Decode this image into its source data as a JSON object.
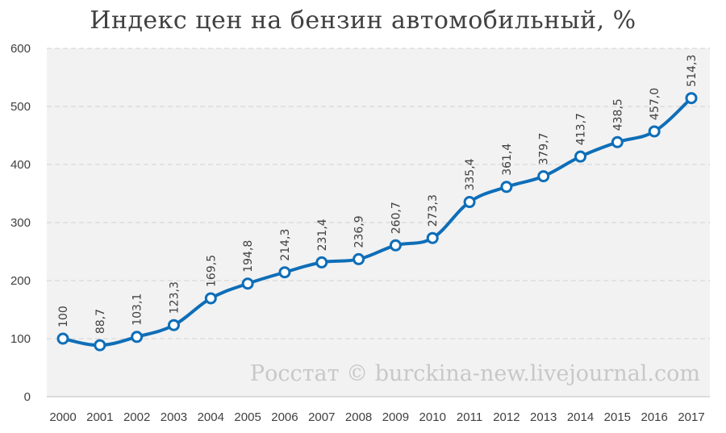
{
  "chart_data": {
    "type": "line",
    "title": "Индекс цен на бензин автомобильный, %",
    "xlabel": "",
    "ylabel": "",
    "ylim": [
      0,
      600
    ],
    "yticks": [
      0,
      100,
      200,
      300,
      400,
      500,
      600
    ],
    "grid": true,
    "legend": "none",
    "categories": [
      "2000",
      "2001",
      "2002",
      "2003",
      "2004",
      "2005",
      "2006",
      "2007",
      "2008",
      "2009",
      "2010",
      "2011",
      "2012",
      "2013",
      "2014",
      "2015",
      "2016",
      "2017"
    ],
    "series": [
      {
        "values": [
          100,
          88.7,
          103.1,
          123.3,
          169.5,
          194.8,
          214.3,
          231.4,
          236.9,
          260.7,
          273.3,
          335.4,
          361.4,
          379.7,
          413.7,
          438.5,
          457.0,
          514.3
        ],
        "labels": [
          "100",
          "88,7",
          "103,1",
          "123,3",
          "169,5",
          "194,8",
          "214,3",
          "231,4",
          "236,9",
          "260,7",
          "273,3",
          "335,4",
          "361,4",
          "379,7",
          "413,7",
          "438,5",
          "457,0",
          "514,3"
        ]
      }
    ],
    "annotation": "Росстат © burckina-new.livejournal.com",
    "colors": {
      "line": "#0e6eb8",
      "plot_bg": "#f2f2f2",
      "grid": "#d9d9d9",
      "marker_fill": "#ffffff"
    }
  }
}
